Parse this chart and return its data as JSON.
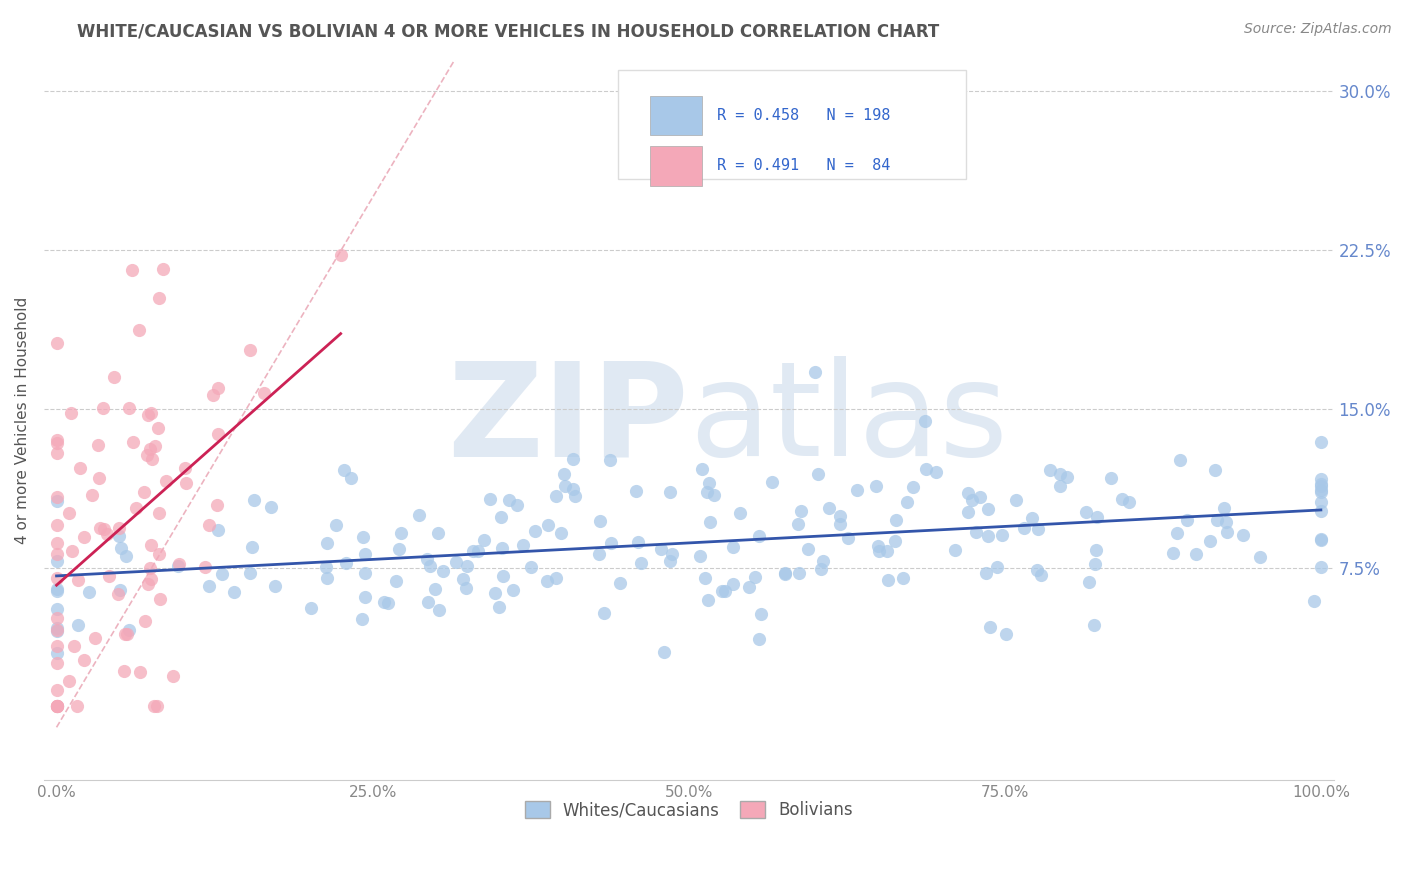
{
  "title": "WHITE/CAUCASIAN VS BOLIVIAN 4 OR MORE VEHICLES IN HOUSEHOLD CORRELATION CHART",
  "source": "Source: ZipAtlas.com",
  "ylabel": "4 or more Vehicles in Household",
  "xlim": [
    -0.01,
    1.01
  ],
  "ylim": [
    -0.025,
    0.315
  ],
  "xticks": [
    0.0,
    0.25,
    0.5,
    0.75,
    1.0
  ],
  "xticklabels": [
    "0.0%",
    "25.0%",
    "50.0%",
    "75.0%",
    "100.0%"
  ],
  "yticks": [
    0.075,
    0.15,
    0.225,
    0.3
  ],
  "yticklabels": [
    "7.5%",
    "15.0%",
    "22.5%",
    "30.0%"
  ],
  "blue_R": 0.458,
  "blue_N": 198,
  "pink_R": 0.491,
  "pink_N": 84,
  "blue_color": "#a8c8e8",
  "pink_color": "#f4a8b8",
  "blue_line_color": "#3355aa",
  "pink_line_color": "#cc2255",
  "diag_color": "#e8a0b0",
  "legend_blue_label": "Whites/Caucasians",
  "legend_pink_label": "Bolivians",
  "watermark_zip": "ZIP",
  "watermark_atlas": "atlas",
  "background_color": "#ffffff",
  "grid_color": "#cccccc",
  "title_color": "#555555",
  "source_color": "#888888",
  "ylabel_color": "#555555",
  "tick_color": "#6688cc",
  "xtick_color": "#888888"
}
